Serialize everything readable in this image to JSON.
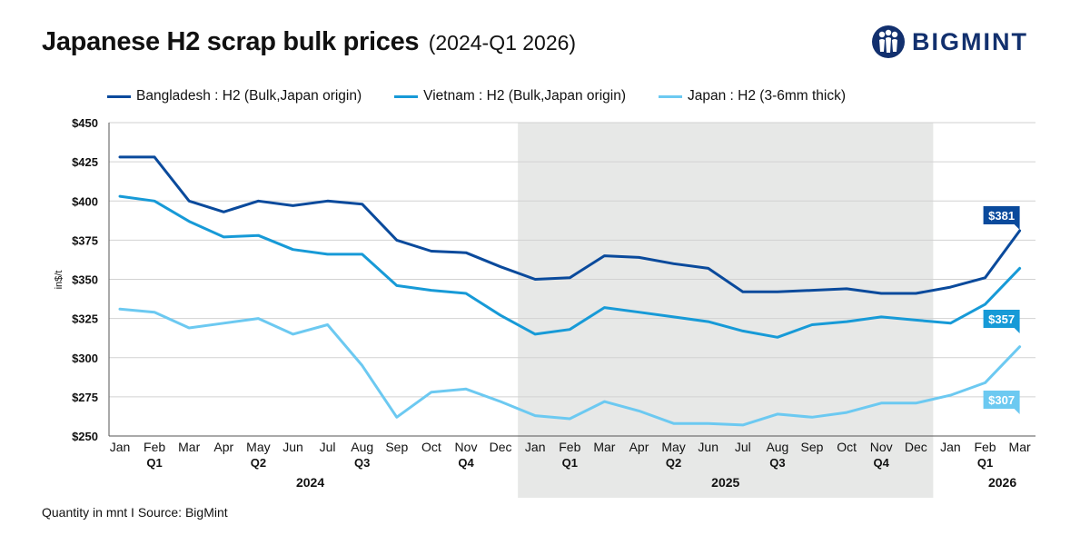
{
  "header": {
    "title": "Japanese H2 scrap bulk prices",
    "subtitle": "(2024-Q1 2026)",
    "logo_text": "BIGMINT"
  },
  "footer": {
    "note": "Quantity in mnt  I  Source: BigMint"
  },
  "colors": {
    "bangladesh": "#0a4a9c",
    "vietnam": "#179ad7",
    "japan": "#6cc9f1",
    "shade": "#e7e8e7",
    "logo": "#12306e"
  },
  "chart_data": {
    "type": "line",
    "ylabel": "in$/t",
    "ylim": [
      250,
      450
    ],
    "yticks": [
      250,
      275,
      300,
      325,
      350,
      375,
      400,
      425,
      450
    ],
    "ytick_labels": [
      "$250",
      "$275",
      "$300",
      "$325",
      "$350",
      "$375",
      "$400",
      "$425",
      "$450"
    ],
    "grid": true,
    "legend_position": "top",
    "shaded_period": "2025",
    "x": [
      "Jan",
      "Feb",
      "Mar",
      "Apr",
      "May",
      "Jun",
      "Jul",
      "Aug",
      "Sep",
      "Oct",
      "Nov",
      "Dec",
      "Jan",
      "Feb",
      "Mar",
      "Apr",
      "May",
      "Jun",
      "Jul",
      "Aug",
      "Sep",
      "Oct",
      "Nov",
      "Dec",
      "Jan",
      "Feb",
      "Mar"
    ],
    "quarters": [
      {
        "label": "Q1",
        "index": 1
      },
      {
        "label": "Q2",
        "index": 4
      },
      {
        "label": "Q3",
        "index": 7
      },
      {
        "label": "Q4",
        "index": 10
      },
      {
        "label": "Q1",
        "index": 13
      },
      {
        "label": "Q2",
        "index": 16
      },
      {
        "label": "Q3",
        "index": 19
      },
      {
        "label": "Q4",
        "index": 22
      },
      {
        "label": "Q1",
        "index": 25
      }
    ],
    "years": [
      {
        "label": "2024",
        "index": 5.5
      },
      {
        "label": "2025",
        "index": 17.5
      },
      {
        "label": "2026",
        "index": 25.5
      }
    ],
    "series": [
      {
        "name": "Bangladesh : H2 (Bulk,Japan origin)",
        "color": "#0a4a9c",
        "values": [
          428,
          428,
          400,
          393,
          400,
          397,
          400,
          398,
          375,
          368,
          367,
          358,
          350,
          351,
          365,
          364,
          360,
          357,
          342,
          342,
          343,
          344,
          341,
          341,
          345,
          351,
          381
        ],
        "end_label": "$381"
      },
      {
        "name": "Vietnam : H2 (Bulk,Japan origin)",
        "color": "#179ad7",
        "values": [
          403,
          400,
          387,
          377,
          378,
          369,
          366,
          366,
          346,
          343,
          341,
          327,
          315,
          318,
          332,
          329,
          326,
          323,
          317,
          313,
          321,
          323,
          326,
          324,
          322,
          334,
          357
        ],
        "end_label": "$357"
      },
      {
        "name": "Japan : H2 (3-6mm thick)",
        "color": "#6cc9f1",
        "values": [
          331,
          329,
          319,
          322,
          325,
          315,
          321,
          295,
          262,
          278,
          280,
          272,
          263,
          261,
          272,
          266,
          258,
          258,
          257,
          264,
          262,
          265,
          271,
          271,
          276,
          284,
          307
        ],
        "end_label": "$307"
      }
    ]
  }
}
